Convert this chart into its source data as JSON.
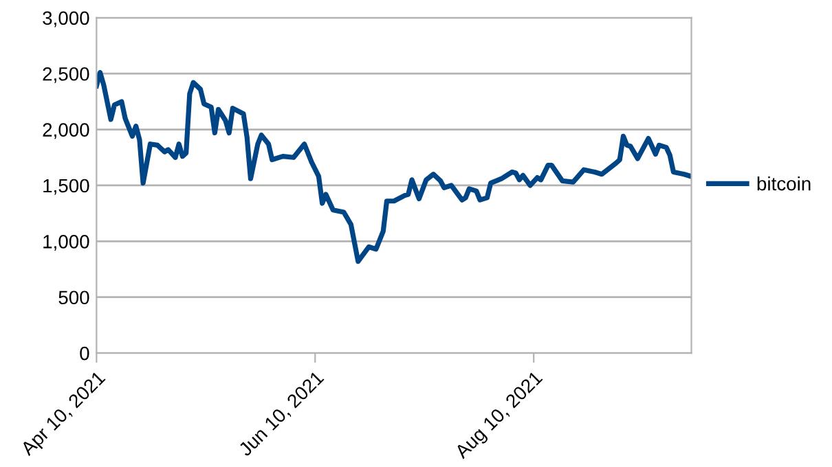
{
  "chart_data": {
    "type": "line",
    "x": [
      "2021-04-10",
      "2021-04-11",
      "2021-04-12",
      "2021-04-14",
      "2021-04-15",
      "2021-04-17",
      "2021-04-18",
      "2021-04-20",
      "2021-04-21",
      "2021-04-22",
      "2021-04-23",
      "2021-04-25",
      "2021-04-27",
      "2021-04-29",
      "2021-04-30",
      "2021-05-02",
      "2021-05-03",
      "2021-05-04",
      "2021-05-05",
      "2021-05-06",
      "2021-05-07",
      "2021-05-09",
      "2021-05-10",
      "2021-05-12",
      "2021-05-13",
      "2021-05-14",
      "2021-05-16",
      "2021-05-17",
      "2021-05-18",
      "2021-05-21",
      "2021-05-22",
      "2021-05-23",
      "2021-05-25",
      "2021-05-26",
      "2021-05-28",
      "2021-05-29",
      "2021-06-01",
      "2021-06-04",
      "2021-06-07",
      "2021-06-09",
      "2021-06-11",
      "2021-06-12",
      "2021-06-13",
      "2021-06-15",
      "2021-06-18",
      "2021-06-20",
      "2021-06-22",
      "2021-06-25",
      "2021-06-27",
      "2021-06-29",
      "2021-06-30",
      "2021-07-02",
      "2021-07-05",
      "2021-07-06",
      "2021-07-07",
      "2021-07-09",
      "2021-07-11",
      "2021-07-13",
      "2021-07-15",
      "2021-07-16",
      "2021-07-18",
      "2021-07-21",
      "2021-07-22",
      "2021-07-23",
      "2021-07-25",
      "2021-07-26",
      "2021-07-28",
      "2021-07-29",
      "2021-08-01",
      "2021-08-04",
      "2021-08-05",
      "2021-08-06",
      "2021-08-07",
      "2021-08-09",
      "2021-08-11",
      "2021-08-12",
      "2021-08-14",
      "2021-08-15",
      "2021-08-18",
      "2021-08-21",
      "2021-08-24",
      "2021-08-27",
      "2021-08-29",
      "2021-09-02",
      "2021-09-03",
      "2021-09-04",
      "2021-09-05",
      "2021-09-06",
      "2021-09-08",
      "2021-09-11",
      "2021-09-13",
      "2021-09-14",
      "2021-09-16",
      "2021-09-17",
      "2021-09-18",
      "2021-09-21",
      "2021-09-23"
    ],
    "series": [
      {
        "name": "bitcoin",
        "color": "#004586",
        "values": [
          2390,
          2510,
          2400,
          2090,
          2220,
          2250,
          2100,
          1940,
          2030,
          1910,
          1520,
          1870,
          1860,
          1800,
          1820,
          1750,
          1870,
          1760,
          1790,
          2320,
          2420,
          2360,
          2230,
          2200,
          1970,
          2180,
          2080,
          1970,
          2190,
          2140,
          1930,
          1560,
          1870,
          1950,
          1870,
          1730,
          1760,
          1750,
          1870,
          1710,
          1580,
          1340,
          1420,
          1280,
          1260,
          1150,
          820,
          950,
          930,
          1090,
          1360,
          1360,
          1410,
          1420,
          1550,
          1380,
          1550,
          1600,
          1540,
          1480,
          1500,
          1370,
          1390,
          1470,
          1450,
          1370,
          1390,
          1520,
          1560,
          1620,
          1610,
          1550,
          1590,
          1500,
          1570,
          1550,
          1680,
          1680,
          1540,
          1530,
          1640,
          1620,
          1600,
          1700,
          1730,
          1940,
          1860,
          1850,
          1740,
          1920,
          1780,
          1860,
          1840,
          1770,
          1620,
          1600,
          1580
        ]
      }
    ],
    "xlim": [
      "2021-04-10",
      "2021-09-23"
    ],
    "xticks": [
      {
        "value": "2021-04-10",
        "label": "Apr 10, 2021"
      },
      {
        "value": "2021-06-10",
        "label": "Jun 10, 2021"
      },
      {
        "value": "2021-08-10",
        "label": "Aug 10, 2021"
      }
    ],
    "ylim": [
      0,
      3000
    ],
    "yticks": [
      {
        "value": 0,
        "label": "0"
      },
      {
        "value": 500,
        "label": "500"
      },
      {
        "value": 1000,
        "label": "1,000"
      },
      {
        "value": 1500,
        "label": "1,500"
      },
      {
        "value": 2000,
        "label": "2,000"
      },
      {
        "value": 2500,
        "label": "2,500"
      },
      {
        "value": 3000,
        "label": "3,000"
      }
    ],
    "grid": "y",
    "legend": "right",
    "marker": "none",
    "line_style": "solid"
  }
}
